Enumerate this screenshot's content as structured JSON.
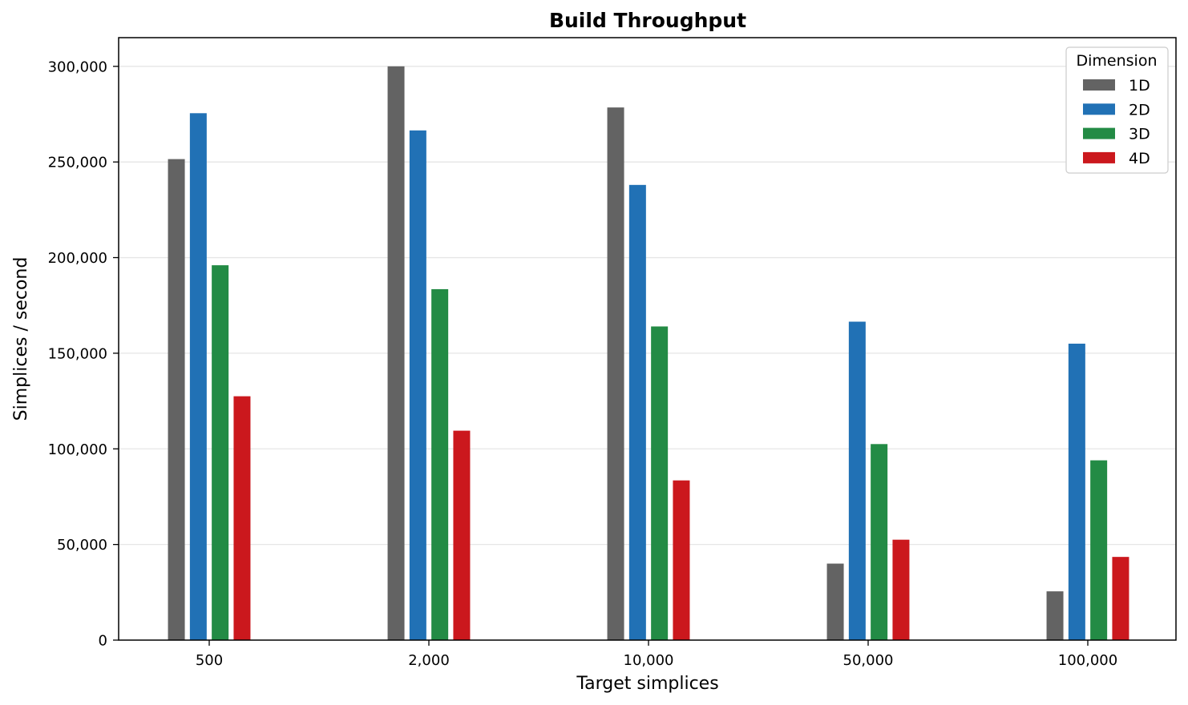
{
  "chart_data": {
    "type": "bar",
    "title": "Build Throughput",
    "xlabel": "Target simplices",
    "ylabel": "Simplices / second",
    "categories": [
      "500",
      "2,000",
      "10,000",
      "50,000",
      "100,000"
    ],
    "ylim": [
      0,
      315000
    ],
    "yticks": [
      0,
      50000,
      100000,
      150000,
      200000,
      250000,
      300000
    ],
    "ytick_labels": [
      "0",
      "50,000",
      "100,000",
      "150,000",
      "200,000",
      "250,000",
      "300,000"
    ],
    "grid": "y",
    "legend": {
      "title": "Dimension",
      "placement": "top-right"
    },
    "series": [
      {
        "name": "1D",
        "color": "#636363",
        "values": [
          251500,
          300000,
          278500,
          40000,
          25500
        ]
      },
      {
        "name": "2D",
        "color": "#2171b5",
        "values": [
          275500,
          266500,
          238000,
          166500,
          155000
        ]
      },
      {
        "name": "3D",
        "color": "#238b45",
        "values": [
          196000,
          183500,
          164000,
          102500,
          94000
        ]
      },
      {
        "name": "4D",
        "color": "#cb181d",
        "values": [
          127500,
          109500,
          83500,
          52500,
          43500
        ]
      }
    ]
  }
}
